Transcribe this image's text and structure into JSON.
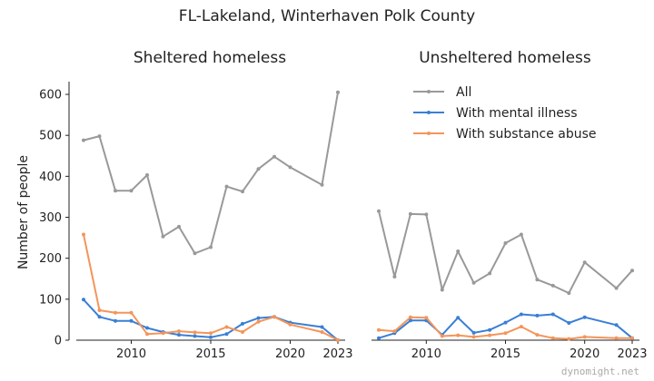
{
  "chart_data": {
    "type": "line",
    "title": "FL-Lakeland, Winterhaven Polk County",
    "ylabel": "Number of people",
    "ylim": [
      0,
      620
    ],
    "xlim": [
      2007,
      2023
    ],
    "yticks": [
      "0",
      "100",
      "200",
      "300",
      "400",
      "500",
      "600"
    ],
    "xticks": [
      "2010",
      "2015",
      "2020",
      "2023"
    ],
    "legend": {
      "placement": "top-right",
      "entries": [
        "All",
        "With mental illness",
        "With substance abuse"
      ]
    },
    "colors": {
      "All": "#999999",
      "With mental illness": "#3a7fd5",
      "With substance abuse": "#f4955a"
    },
    "x": [
      2007,
      2008,
      2009,
      2010,
      2011,
      2012,
      2013,
      2014,
      2015,
      2016,
      2017,
      2018,
      2019,
      2020,
      2022,
      2023
    ],
    "panels": [
      {
        "subtitle": "Sheltered homeless",
        "series": [
          {
            "name": "All",
            "values": [
              488,
              498,
              365,
              365,
              403,
              253,
              277,
              212,
              227,
              375,
              363,
              418,
              448,
              422,
              379,
              605
            ]
          },
          {
            "name": "With mental illness",
            "values": [
              99,
              57,
              47,
              47,
              30,
              20,
              13,
              10,
              7,
              15,
              40,
              54,
              57,
              43,
              32,
              0
            ]
          },
          {
            "name": "With substance abuse",
            "values": [
              258,
              73,
              67,
              67,
              15,
              17,
              22,
              19,
              17,
              32,
              20,
              45,
              57,
              38,
              20,
              0
            ]
          }
        ]
      },
      {
        "subtitle": "Unsheltered homeless",
        "series": [
          {
            "name": "All",
            "values": [
              315,
              155,
              308,
              307,
              123,
              217,
              140,
              163,
              237,
              258,
              148,
              133,
              115,
              190,
              127,
              170
            ]
          },
          {
            "name": "With mental illness",
            "values": [
              5,
              17,
              48,
              48,
              13,
              55,
              18,
              25,
              43,
              63,
              60,
              63,
              42,
              56,
              37,
              5
            ]
          },
          {
            "name": "With substance abuse",
            "values": [
              25,
              22,
              56,
              55,
              10,
              12,
              8,
              12,
              17,
              33,
              13,
              5,
              3,
              8,
              5,
              5
            ]
          }
        ]
      }
    ]
  },
  "watermark": "dynomight.net"
}
